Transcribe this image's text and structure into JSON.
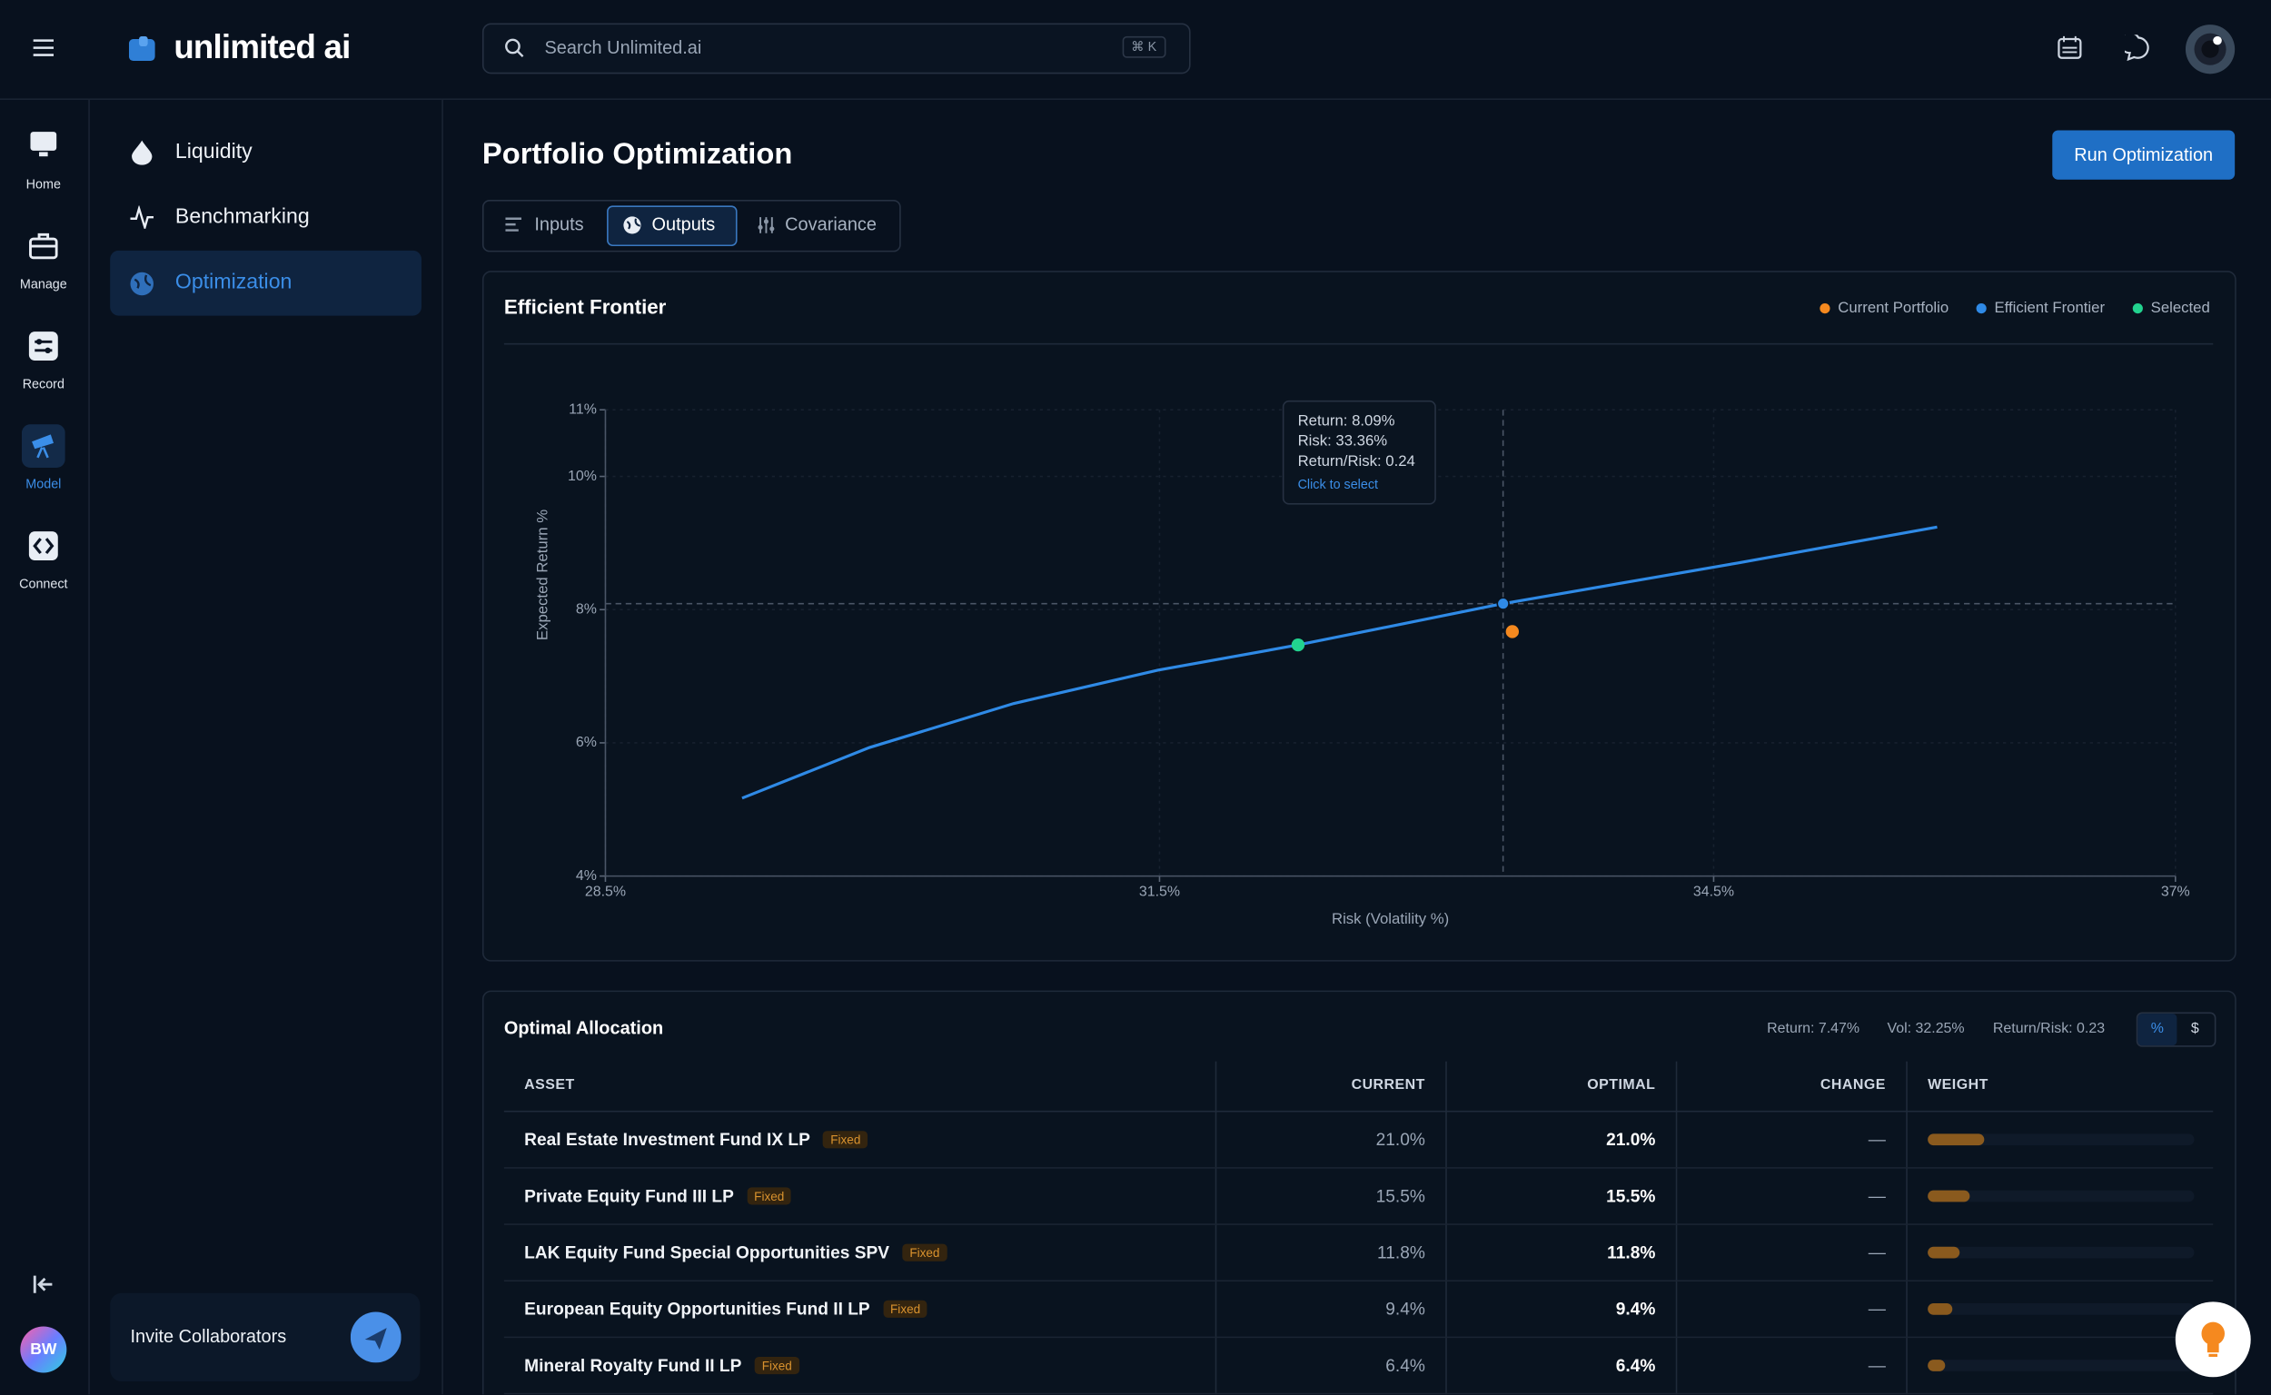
{
  "header": {
    "logo": "unlimited ai",
    "search_placeholder": "Search Unlimited.ai",
    "search_shortcut": "⌘ K"
  },
  "rail": {
    "items": [
      "Home",
      "Manage",
      "Record",
      "Model",
      "Connect"
    ],
    "avatar": "BW"
  },
  "nav": {
    "items": [
      "Liquidity",
      "Benchmarking",
      "Optimization"
    ],
    "invite": "Invite Collaborators"
  },
  "page": {
    "title": "Portfolio Optimization",
    "run_button": "Run Optimization",
    "tabs": [
      "Inputs",
      "Outputs",
      "Covariance"
    ]
  },
  "chart_data": {
    "type": "line",
    "title": "Efficient Frontier",
    "x_label": "Risk (Volatility %)",
    "y_label": "Expected Return %",
    "xlim": [
      28.5,
      37
    ],
    "xticks": [
      {
        "value": 28.5,
        "label": "28.5%"
      },
      {
        "value": 31.5,
        "label": "31.5%"
      },
      {
        "value": 34.5,
        "label": "34.5%"
      },
      {
        "value": 37,
        "label": "37%"
      }
    ],
    "ylim": [
      4,
      11
    ],
    "yticks": [
      {
        "value": 4,
        "label": "4%"
      },
      {
        "value": 6,
        "label": "6%"
      },
      {
        "value": 8,
        "label": "8%"
      },
      {
        "value": 10,
        "label": "10%"
      },
      {
        "value": 11,
        "label": "11%"
      }
    ],
    "grid": true,
    "legend": "top-right",
    "series": [
      {
        "name": "Current Portfolio",
        "color": "#f5891f",
        "type": "scatter",
        "x": [
          33.41
        ],
        "values": [
          7.67
        ]
      },
      {
        "name": "Efficient Frontier",
        "color": "#2f8ae6",
        "type": "line",
        "x": [
          29.24,
          29.93,
          30.71,
          31.49,
          32.25,
          33.36,
          34.63,
          35.71
        ],
        "values": [
          5.17,
          5.93,
          6.59,
          7.09,
          7.47,
          8.09,
          8.7,
          9.24
        ]
      },
      {
        "name": "Selected",
        "color": "#22d38f",
        "type": "scatter",
        "x": [
          32.25
        ],
        "values": [
          7.47
        ]
      }
    ],
    "tooltip": {
      "lines": [
        "Return: 8.09%",
        "Risk: 33.36%",
        "Return/Risk: 0.24"
      ],
      "hint": "Click to select"
    }
  },
  "allocation": {
    "title": "Optimal Allocation",
    "stats": [
      "Return: 7.47%",
      "Vol: 32.25%",
      "Return/Risk: 0.23"
    ],
    "units": [
      "%",
      "$"
    ],
    "columns": [
      "ASSET",
      "CURRENT",
      "OPTIMAL",
      "CHANGE",
      "WEIGHT"
    ],
    "rows": [
      {
        "asset": "Real Estate Investment Fund IX LP",
        "tag": "Fixed",
        "current": "21.0%",
        "optimal": "21.0%",
        "change": "—",
        "weight": 21.0
      },
      {
        "asset": "Private Equity Fund III LP",
        "tag": "Fixed",
        "current": "15.5%",
        "optimal": "15.5%",
        "change": "—",
        "weight": 15.5
      },
      {
        "asset": "LAK Equity Fund Special Opportunities SPV",
        "tag": "Fixed",
        "current": "11.8%",
        "optimal": "11.8%",
        "change": "—",
        "weight": 11.8
      },
      {
        "asset": "European Equity Opportunities Fund II LP",
        "tag": "Fixed",
        "current": "9.4%",
        "optimal": "9.4%",
        "change": "—",
        "weight": 9.4
      },
      {
        "asset": "Mineral Royalty Fund II LP",
        "tag": "Fixed",
        "current": "6.4%",
        "optimal": "6.4%",
        "change": "—",
        "weight": 6.4
      }
    ]
  }
}
